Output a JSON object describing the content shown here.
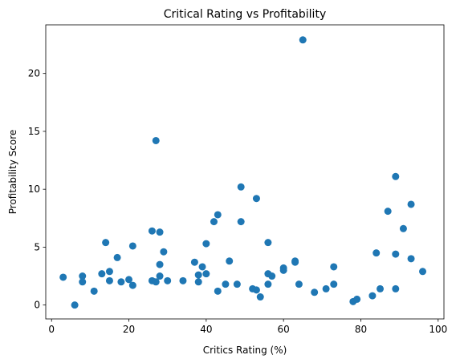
{
  "chart_data": {
    "type": "scatter",
    "title": "Critical Rating vs Profitability",
    "xlabel": "Critics Rating (%)",
    "ylabel": "Profitability Score",
    "xlim": [
      -1.5,
      101.5
    ],
    "ylim": [
      -1.2,
      24.2
    ],
    "xticks": [
      0,
      20,
      40,
      60,
      80,
      100
    ],
    "yticks": [
      0,
      5,
      10,
      15,
      20
    ],
    "grid": false,
    "marker_color": "#1f77b4",
    "series": [
      {
        "points": [
          [
            3,
            2.4
          ],
          [
            6,
            0.0
          ],
          [
            8,
            2.5
          ],
          [
            8,
            2.0
          ],
          [
            11,
            1.2
          ],
          [
            13,
            2.7
          ],
          [
            14,
            5.4
          ],
          [
            15,
            2.9
          ],
          [
            15,
            2.1
          ],
          [
            17,
            4.1
          ],
          [
            18,
            2.0
          ],
          [
            20,
            2.2
          ],
          [
            21,
            5.1
          ],
          [
            21,
            1.7
          ],
          [
            26,
            6.4
          ],
          [
            26,
            2.1
          ],
          [
            27,
            14.2
          ],
          [
            27,
            2.0
          ],
          [
            28,
            6.3
          ],
          [
            28,
            3.5
          ],
          [
            28,
            2.5
          ],
          [
            29,
            4.6
          ],
          [
            30,
            2.1
          ],
          [
            34,
            2.1
          ],
          [
            37,
            3.7
          ],
          [
            38,
            2.6
          ],
          [
            38,
            2.0
          ],
          [
            39,
            3.3
          ],
          [
            40,
            5.3
          ],
          [
            40,
            2.7
          ],
          [
            42,
            7.2
          ],
          [
            43,
            7.8
          ],
          [
            43,
            1.2
          ],
          [
            45,
            1.8
          ],
          [
            46,
            3.8
          ],
          [
            48,
            1.8
          ],
          [
            49,
            10.2
          ],
          [
            49,
            7.2
          ],
          [
            52,
            1.4
          ],
          [
            53,
            9.2
          ],
          [
            53,
            1.3
          ],
          [
            54,
            0.7
          ],
          [
            56,
            5.4
          ],
          [
            56,
            2.7
          ],
          [
            56,
            1.8
          ],
          [
            57,
            2.5
          ],
          [
            60,
            3.2
          ],
          [
            60,
            3.0
          ],
          [
            63,
            3.8
          ],
          [
            63,
            3.7
          ],
          [
            64,
            1.8
          ],
          [
            65,
            22.9
          ],
          [
            68,
            1.1
          ],
          [
            71,
            1.4
          ],
          [
            73,
            3.3
          ],
          [
            73,
            1.8
          ],
          [
            78,
            0.3
          ],
          [
            79,
            0.5
          ],
          [
            83,
            0.8
          ],
          [
            84,
            4.5
          ],
          [
            85,
            1.4
          ],
          [
            87,
            8.1
          ],
          [
            89,
            11.1
          ],
          [
            89,
            4.4
          ],
          [
            89,
            1.4
          ],
          [
            91,
            6.6
          ],
          [
            93,
            8.7
          ],
          [
            93,
            4.0
          ],
          [
            96,
            2.9
          ]
        ]
      }
    ]
  }
}
